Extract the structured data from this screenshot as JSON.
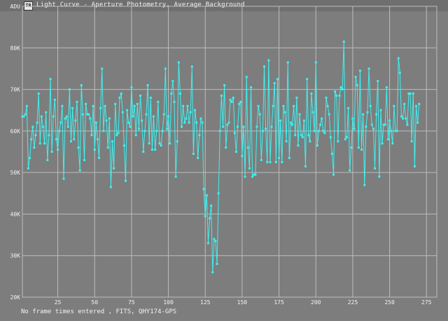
{
  "window": {
    "title": "Light Curve - Aperture Photometry, Average Background",
    "icon": "app-icon"
  },
  "status_text": "No frame times entered , FITS, QHY174-GPS",
  "colors": {
    "background": "#7d7d7d",
    "grid": "#bdbdbd",
    "series": "#3ff0f0",
    "text": "#f2f2f2"
  },
  "chart_data": {
    "type": "line",
    "ylabel": "ADU",
    "xlim": [
      1,
      282
    ],
    "ylim": [
      20000,
      90000
    ],
    "x_ticks": [
      25,
      50,
      75,
      100,
      125,
      150,
      175,
      200,
      225,
      250,
      275
    ],
    "y_ticks": [
      {
        "value": 20000,
        "label": "20K"
      },
      {
        "value": 30000,
        "label": "30K"
      },
      {
        "value": 40000,
        "label": "40K"
      },
      {
        "value": 50000,
        "label": "50K"
      },
      {
        "value": 60000,
        "label": "60K"
      },
      {
        "value": 70000,
        "label": "70K"
      },
      {
        "value": 80000,
        "label": "80K"
      },
      {
        "value": 90000,
        "label": "ADU"
      }
    ],
    "grid": true,
    "markers": true,
    "series": [
      {
        "values": [
          63500,
          63500,
          64000,
          66000,
          51000,
          53500,
          58000,
          61000,
          56000,
          59000,
          62000,
          69000,
          57000,
          63500,
          61000,
          57000,
          64500,
          53000,
          59000,
          72500,
          55000,
          63500,
          67500,
          58000,
          55500,
          60000,
          62000,
          66000,
          48500,
          63000,
          63500,
          61000,
          70000,
          57500,
          65500,
          58000,
          62500,
          67000,
          56000,
          50500,
          71000,
          64000,
          53000,
          66500,
          64000,
          64000,
          63000,
          59000,
          66000,
          55500,
          62000,
          58000,
          53500,
          65500,
          75000,
          60000,
          66000,
          62500,
          56000,
          63000,
          46500,
          57500,
          51000,
          66500,
          59000,
          59500,
          68000,
          69000,
          64500,
          56500,
          48000,
          65000,
          62000,
          61000,
          70500,
          63500,
          66000,
          59000,
          66500,
          60500,
          68500,
          62500,
          55000,
          60000,
          64000,
          71000,
          57000,
          68000,
          55500,
          63500,
          55500,
          60000,
          67000,
          57000,
          56500,
          60000,
          64000,
          75000,
          60500,
          63500,
          57000,
          69000,
          72000,
          67000,
          49000,
          57500,
          76500,
          69000,
          61000,
          66000,
          62000,
          63000,
          66000,
          62000,
          64500,
          75500,
          54500,
          65000,
          62000,
          53500,
          59000,
          63000,
          62000,
          46000,
          39500,
          44500,
          33000,
          39000,
          42000,
          26000,
          34000,
          33500,
          28000,
          45000,
          60000,
          68500,
          61000,
          71000,
          56000,
          61500,
          62000,
          67500,
          67000,
          68000,
          59500,
          55000,
          61000,
          66500,
          67000,
          54000,
          61000,
          49000,
          73000,
          56000,
          51000,
          70500,
          49000,
          49500,
          49500,
          61000,
          66000,
          64000,
          53000,
          60000,
          75500,
          60500,
          52500,
          77000,
          52500,
          61000,
          66000,
          71500,
          52500,
          72500,
          53500,
          62500,
          52500,
          66000,
          64500,
          57500,
          76500,
          53500,
          62000,
          61500,
          66000,
          59000,
          68000,
          56500,
          64000,
          59000,
          58500,
          62500,
          51500,
          72500,
          59000,
          57500,
          69000,
          64500,
          60000,
          76500,
          56500,
          60000,
          61500,
          63000,
          60000,
          59500,
          68000,
          66000,
          64000,
          58500,
          54500,
          49500,
          69500,
          68500,
          57500,
          68500,
          70500,
          70000,
          81500,
          58000,
          58500,
          65500,
          50500,
          56000,
          63000,
          60500,
          73000,
          71000,
          56000,
          74500,
          55500,
          64000,
          47000,
          61000,
          64500,
          75000,
          66000,
          61500,
          60500,
          51000,
          64000,
          72000,
          49000,
          65000,
          57000,
          61500,
          61500,
          70500,
          58000,
          62500,
          60000,
          57000,
          66000,
          60000,
          60000,
          77500,
          74000,
          63500,
          63000,
          66500,
          63000,
          61500,
          69000,
          69000,
          57500,
          69000,
          51500,
          66000,
          62000,
          66500
        ]
      }
    ]
  }
}
